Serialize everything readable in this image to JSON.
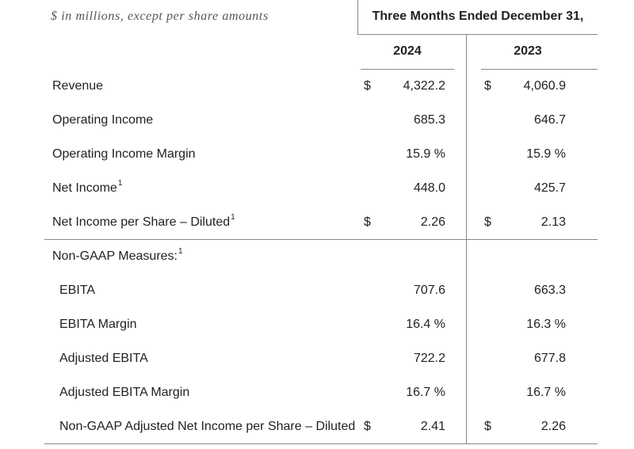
{
  "header": {
    "units_note": "$ in millions, except per share amounts",
    "period": "Three Months Ended December 31,",
    "years": [
      "2024",
      "2023"
    ]
  },
  "rows": [
    {
      "label": "Revenue",
      "sup": "",
      "indent": false,
      "cur1": "$",
      "v1": "4,322.2",
      "cur2": "$",
      "v2": "4,060.9"
    },
    {
      "label": "Operating Income",
      "sup": "",
      "indent": false,
      "cur1": "",
      "v1": "685.3",
      "cur2": "",
      "v2": "646.7"
    },
    {
      "label": "Operating Income Margin",
      "sup": "",
      "indent": false,
      "cur1": "",
      "v1": "15.9 %",
      "cur2": "",
      "v2": "15.9 %"
    },
    {
      "label": "Net Income",
      "sup": "1",
      "indent": false,
      "cur1": "",
      "v1": "448.0",
      "cur2": "",
      "v2": "425.7"
    },
    {
      "label": "Net Income per Share – Diluted",
      "sup": "1",
      "indent": false,
      "cur1": "$",
      "v1": "2.26",
      "cur2": "$",
      "v2": "2.13"
    },
    {
      "label": "Non-GAAP Measures:",
      "sup": "1",
      "indent": false,
      "cur1": "",
      "v1": "",
      "cur2": "",
      "v2": ""
    },
    {
      "label": "EBITA",
      "sup": "",
      "indent": true,
      "cur1": "",
      "v1": "707.6",
      "cur2": "",
      "v2": "663.3"
    },
    {
      "label": "EBITA Margin",
      "sup": "",
      "indent": true,
      "cur1": "",
      "v1": "16.4 %",
      "cur2": "",
      "v2": "16.3 %"
    },
    {
      "label": "Adjusted EBITA",
      "sup": "",
      "indent": true,
      "cur1": "",
      "v1": "722.2",
      "cur2": "",
      "v2": "677.8"
    },
    {
      "label": "Adjusted EBITA Margin",
      "sup": "",
      "indent": true,
      "cur1": "",
      "v1": "16.7 %",
      "cur2": "",
      "v2": "16.7 %"
    },
    {
      "label": "Non-GAAP Adjusted Net Income per Share – Diluted",
      "sup": "",
      "indent": true,
      "cur1": "$",
      "v1": "2.41",
      "cur2": "$",
      "v2": "2.26"
    }
  ]
}
